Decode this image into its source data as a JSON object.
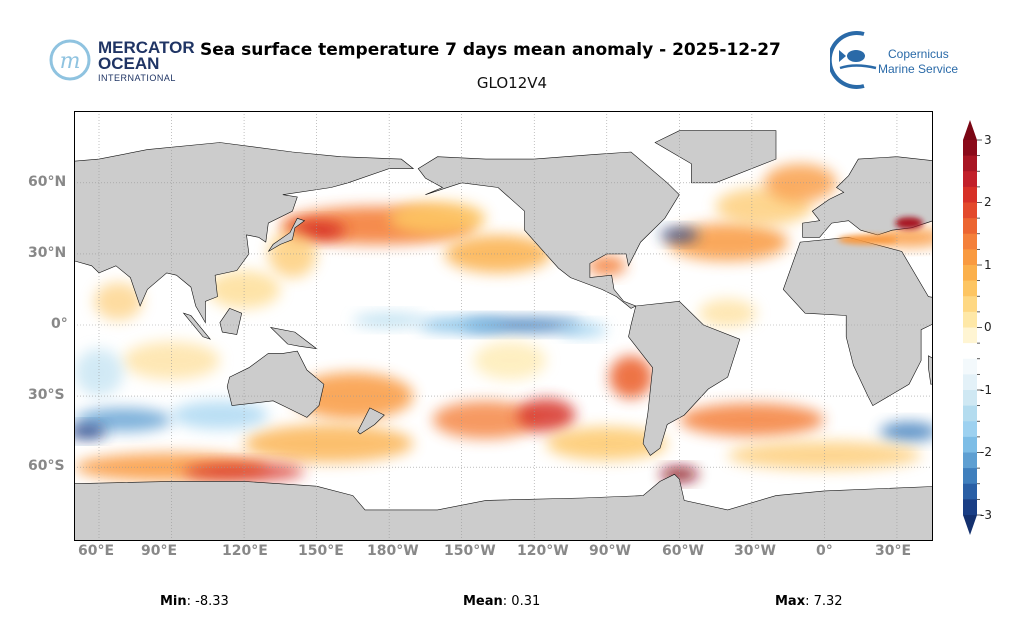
{
  "header": {
    "title": "Sea surface temperature 7 days mean anomaly - 2025-12-27",
    "subtitle": "GLO12V4",
    "left_logo": {
      "line1": "MERCATOR",
      "line2": "OCEAN",
      "line3": "INTERNATIONAL"
    },
    "right_logo": {
      "line1": "Copernicus",
      "line2": "Marine Service"
    }
  },
  "map": {
    "land_color": "#cccccc",
    "lat_ticks": [
      "60°N",
      "30°N",
      "0°",
      "30°S",
      "60°S"
    ],
    "lon_ticks": [
      "60°E",
      "90°E",
      "120°E",
      "150°E",
      "180°W",
      "150°W",
      "120°W",
      "90°W",
      "60°W",
      "30°W",
      "0°",
      "30°E"
    ]
  },
  "colorbar": {
    "ticks": [
      "3",
      "2",
      "1",
      "0",
      "-1",
      "-2",
      "-3"
    ],
    "range": [
      -3,
      3
    ],
    "step": 0.25,
    "colors": [
      "#8b0a1a",
      "#a81523",
      "#c2202a",
      "#d73027",
      "#e34a2c",
      "#ec6531",
      "#f4803a",
      "#f99a40",
      "#fbb04b",
      "#fdc562",
      "#fed883",
      "#fee8a7",
      "#fff5d3",
      "#ffffff",
      "#f3f9fc",
      "#e3f1f8",
      "#cfe8f3",
      "#b4dcef",
      "#9dd1f0",
      "#7dbde6",
      "#5e9fd2",
      "#3f7fbd",
      "#2a5fa5",
      "#1a3e85"
    ],
    "over_color": "#7a0614",
    "under_color": "#14306e"
  },
  "stats": {
    "min_label": "Min",
    "min_value": "-8.33",
    "mean_label": "Mean",
    "mean_value": "0.31",
    "max_label": "Max",
    "max_value": "7.32"
  }
}
